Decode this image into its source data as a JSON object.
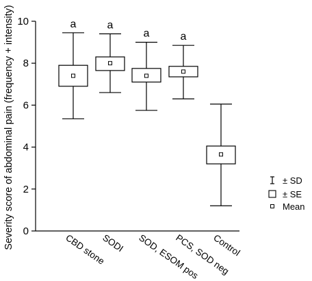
{
  "chart_data": {
    "type": "box",
    "ylabel": "Severity score of abdominal pain (frequency + intensity)",
    "ylim": [
      0,
      10
    ],
    "yticks": [
      0,
      2,
      4,
      6,
      8,
      10
    ],
    "categories": [
      "CBD stone",
      "SODI",
      "SOD, ESOM pos",
      "PCS, SOD neg",
      "Control"
    ],
    "series": [
      {
        "category": "CBD stone",
        "mean": 7.4,
        "se_low": 6.9,
        "se_high": 7.9,
        "sd_low": 5.35,
        "sd_high": 9.45,
        "annotation": "a"
      },
      {
        "category": "SODI",
        "mean": 8.0,
        "se_low": 7.65,
        "se_high": 8.3,
        "sd_low": 6.6,
        "sd_high": 9.4,
        "annotation": "a"
      },
      {
        "category": "SOD, ESOM pos",
        "mean": 7.4,
        "se_low": 7.1,
        "se_high": 7.75,
        "sd_low": 5.75,
        "sd_high": 9.0,
        "annotation": "a"
      },
      {
        "category": "PCS, SOD neg",
        "mean": 7.6,
        "se_low": 7.35,
        "se_high": 7.85,
        "sd_low": 6.3,
        "sd_high": 8.85,
        "annotation": "a"
      },
      {
        "category": "Control",
        "mean": 3.65,
        "se_low": 3.2,
        "se_high": 4.05,
        "sd_low": 1.2,
        "sd_high": 6.05,
        "annotation": ""
      }
    ],
    "legend": {
      "position": "right",
      "items": [
        {
          "symbol": "whisker",
          "label": "± SD"
        },
        {
          "symbol": "box",
          "label": "± SE"
        },
        {
          "symbol": "small-square",
          "label": "Mean"
        }
      ]
    }
  }
}
